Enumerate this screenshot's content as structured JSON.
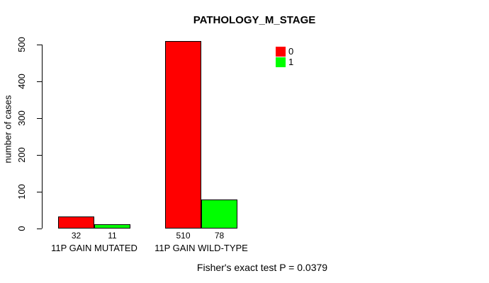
{
  "chart_data": {
    "type": "bar",
    "title": "PATHOLOGY_M_STAGE",
    "xlabel": "",
    "ylabel": "number of cases",
    "categories": [
      "11P GAIN MUTATED",
      "11P GAIN WILD-TYPE"
    ],
    "series": [
      {
        "name": "0",
        "color": "#ff0000",
        "values": [
          32,
          510
        ]
      },
      {
        "name": "1",
        "color": "#00ff00",
        "values": [
          11,
          78
        ]
      }
    ],
    "bar_value_labels": [
      [
        "32",
        "11"
      ],
      [
        "510",
        "78"
      ]
    ],
    "yticks": [
      0,
      100,
      200,
      300,
      400,
      500
    ],
    "ylim": [
      0,
      500
    ],
    "grid": false,
    "legend_position": "top-right",
    "legend": [
      {
        "label": "0",
        "color": "#ff0000"
      },
      {
        "label": "1",
        "color": "#00ff00"
      }
    ],
    "annotation": "Fisher's exact test P = 0.0379"
  },
  "colors": {
    "background": "#ffffff",
    "axis": "#000000",
    "text": "#000000",
    "series_0": "#ff0000",
    "series_1": "#00ff00"
  }
}
